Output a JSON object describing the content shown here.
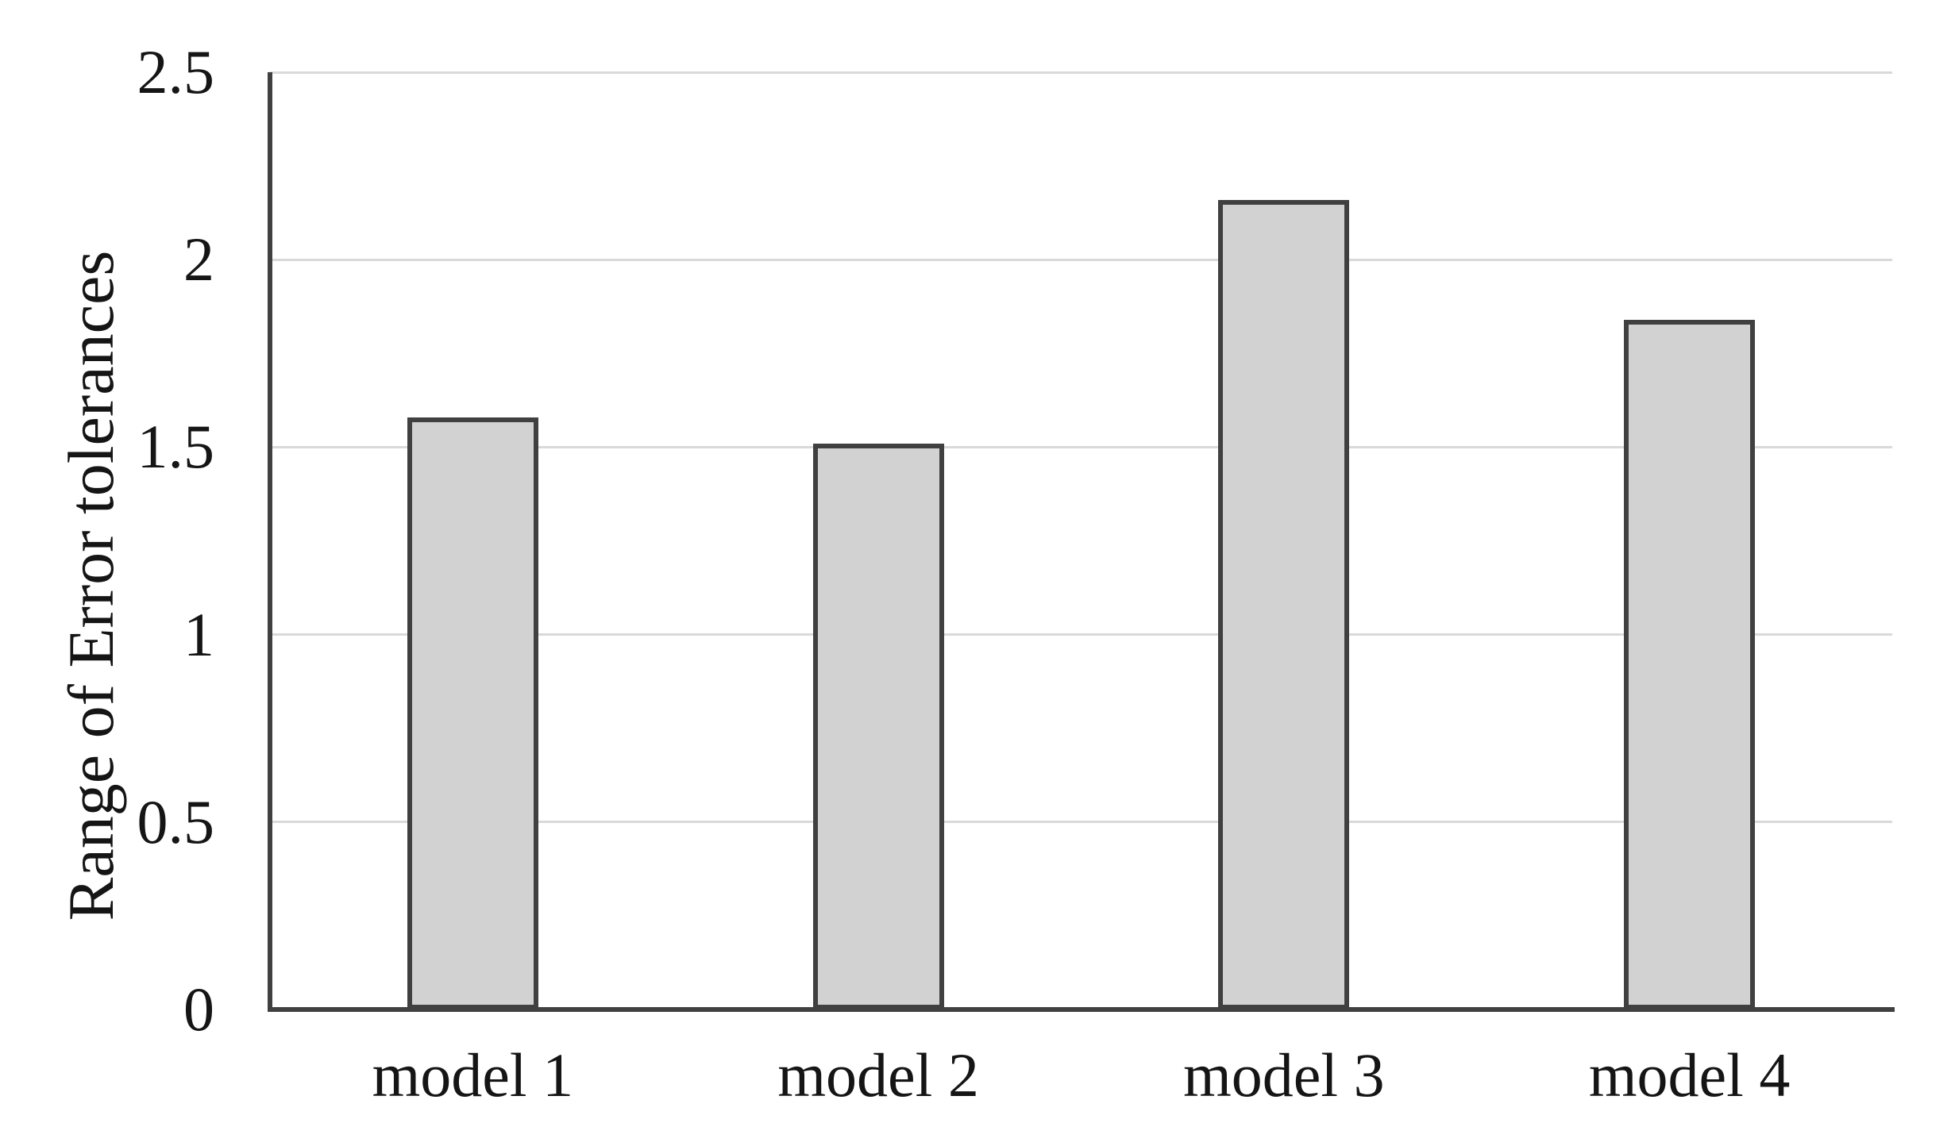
{
  "chart_data": {
    "type": "bar",
    "title": "",
    "categories": [
      "model 1",
      "model 2",
      "model 3",
      "model 4"
    ],
    "values": [
      1.58,
      1.51,
      2.16,
      1.84
    ],
    "xlabel": "",
    "ylabel": "Range of Error tolerances",
    "ylim": [
      0,
      2.5
    ],
    "ytick_values": [
      0,
      0.5,
      1,
      1.5,
      2,
      2.5
    ],
    "ytick_labels": [
      "0",
      "0.5",
      "1",
      "1.5",
      "2",
      "2.5"
    ],
    "grid": "horizontal-only",
    "legend": "none",
    "bar_fill": "#d2d2d2",
    "bar_border": "#404040",
    "axis_color": "#404040",
    "gridline_color": "#d9d9d9",
    "text_color": "#151515"
  }
}
